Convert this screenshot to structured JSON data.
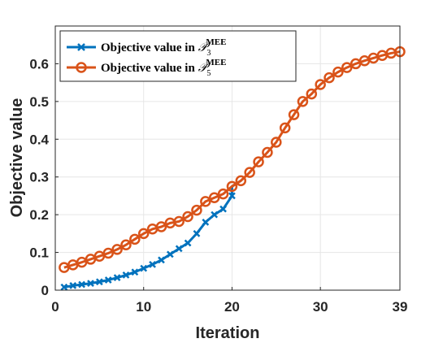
{
  "chart_data": {
    "type": "line",
    "xlabel": "Iteration",
    "ylabel": "Objective value",
    "xlim": [
      0,
      39
    ],
    "ylim": [
      0,
      0.7
    ],
    "xticks": [
      0,
      10,
      20,
      30,
      39
    ],
    "xtick_labels": [
      "0",
      "10",
      "20",
      "30",
      "39"
    ],
    "yticks": [
      0,
      0.1,
      0.2,
      0.3,
      0.4,
      0.5,
      0.6
    ],
    "ytick_labels": [
      "0",
      "0.1",
      "0.2",
      "0.3",
      "0.4",
      "0.5",
      "0.6"
    ],
    "grid": true,
    "legend_position": "top-left",
    "series": [
      {
        "name": "Objective value in P3 MEE",
        "legend_prefix": "Objective value in ",
        "legend_symbol": "𝒫",
        "legend_subscript": "3",
        "legend_superscript": "MEE",
        "color": "#0072BD",
        "marker": "x",
        "x": [
          1,
          2,
          3,
          4,
          5,
          6,
          7,
          8,
          9,
          10,
          11,
          12,
          13,
          14,
          15,
          16,
          17,
          18,
          19,
          20
        ],
        "y": [
          0.008,
          0.012,
          0.015,
          0.018,
          0.022,
          0.027,
          0.033,
          0.04,
          0.048,
          0.058,
          0.068,
          0.08,
          0.095,
          0.11,
          0.125,
          0.15,
          0.18,
          0.2,
          0.215,
          0.25
        ]
      },
      {
        "name": "Objective value in P5 MEE",
        "legend_prefix": "Objective value in ",
        "legend_symbol": "𝒫",
        "legend_subscript": "5",
        "legend_superscript": "MEE",
        "color": "#D95319",
        "marker": "o",
        "x": [
          1,
          2,
          3,
          4,
          5,
          6,
          7,
          8,
          9,
          10,
          11,
          12,
          13,
          14,
          15,
          16,
          17,
          18,
          19,
          20,
          21,
          22,
          23,
          24,
          25,
          26,
          27,
          28,
          29,
          30,
          31,
          32,
          33,
          34,
          35,
          36,
          37,
          38,
          39
        ],
        "y": [
          0.06,
          0.067,
          0.074,
          0.082,
          0.09,
          0.098,
          0.108,
          0.12,
          0.135,
          0.15,
          0.162,
          0.168,
          0.178,
          0.182,
          0.195,
          0.212,
          0.235,
          0.245,
          0.255,
          0.275,
          0.29,
          0.312,
          0.34,
          0.365,
          0.392,
          0.43,
          0.465,
          0.5,
          0.52,
          0.545,
          0.563,
          0.578,
          0.59,
          0.6,
          0.608,
          0.615,
          0.622,
          0.628,
          0.632
        ]
      }
    ],
    "extra_series_p3_tail": {
      "x": [
        20,
        21
      ],
      "y": [
        0.275,
        0.29
      ]
    }
  }
}
